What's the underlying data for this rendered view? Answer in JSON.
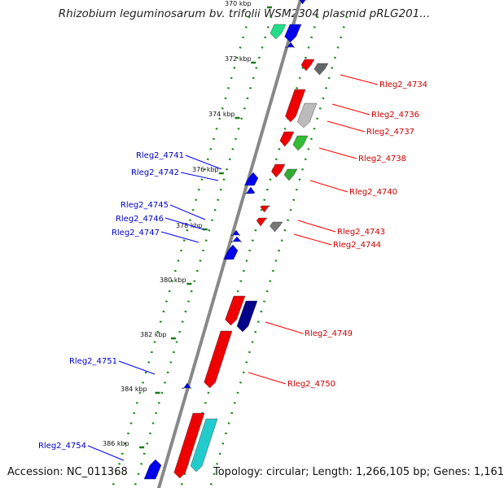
{
  "title": "Rhizobium leguminosarum bv. trifolii WSM2304 plasmid pRLG201...",
  "accession": "Accession: NC_011368",
  "topology": "Topology: circular; Length: 1,266,105 bp; Genes: 1,161",
  "colors": {
    "backbone": "#888888",
    "dotted_track": "#1a8a1a",
    "red_gene": "#ff0000",
    "blue_gene": "#0000ff",
    "label_red": "#cc0000",
    "label_blue": "#0000cc"
  },
  "ticks": [
    {
      "label": "370 kbp"
    },
    {
      "label": "372 kbp"
    },
    {
      "label": "374 kbp"
    },
    {
      "label": "376 kbp"
    },
    {
      "label": "378 kbp"
    },
    {
      "label": "380 kbp"
    },
    {
      "label": "382 kbp"
    },
    {
      "label": "384 kbp"
    },
    {
      "label": "386 kbp"
    }
  ],
  "genes_right": [
    {
      "name": "Rleg2_4734"
    },
    {
      "name": "Rleg2_4736"
    },
    {
      "name": "Rleg2_4737"
    },
    {
      "name": "Rleg2_4738"
    },
    {
      "name": "Rleg2_4740"
    },
    {
      "name": "Rleg2_4743"
    },
    {
      "name": "Rleg2_4744"
    },
    {
      "name": "Rleg2_4749"
    },
    {
      "name": "Rleg2_4750"
    }
  ],
  "genes_left": [
    {
      "name": "Rleg2_4741"
    },
    {
      "name": "Rleg2_4742"
    },
    {
      "name": "Rleg2_4745"
    },
    {
      "name": "Rleg2_4746"
    },
    {
      "name": "Rleg2_4747"
    },
    {
      "name": "Rleg2_4751"
    },
    {
      "name": "Rleg2_4754"
    }
  ]
}
